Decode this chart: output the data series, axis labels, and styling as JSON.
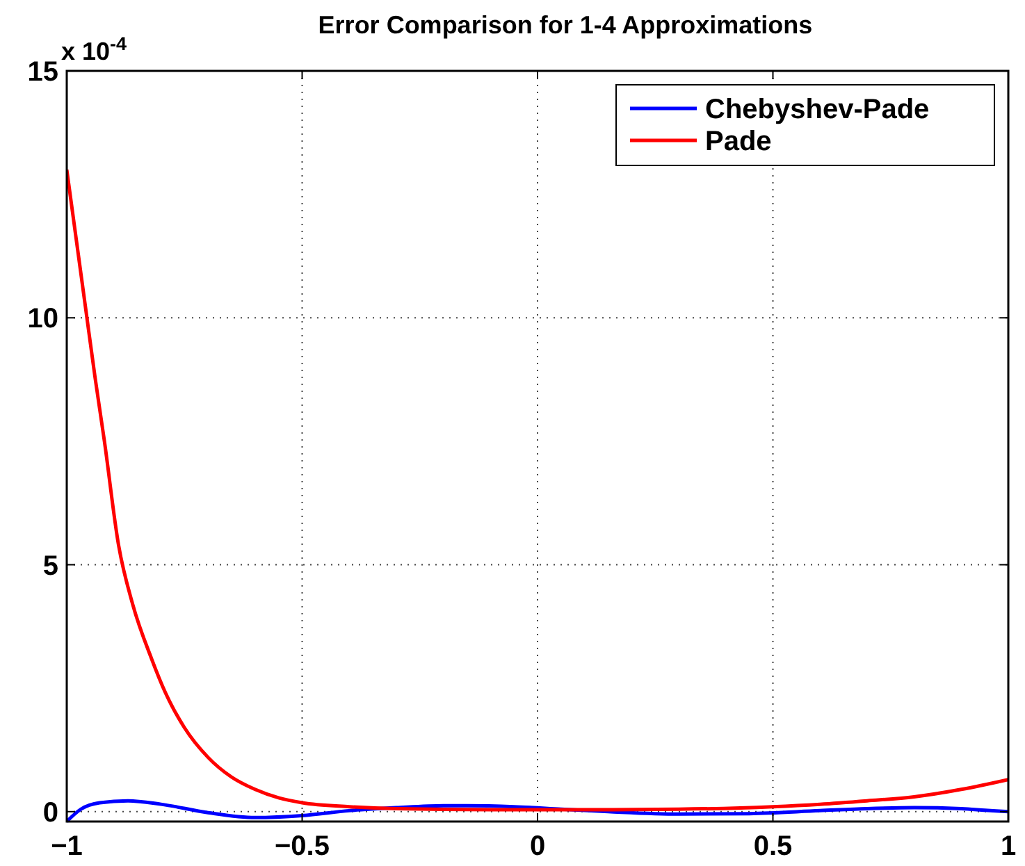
{
  "chart_data": {
    "type": "line",
    "title": "Error Comparison for 1-4 Approximations",
    "annotations": [
      "x 10$^{-4}$"
    ],
    "xlim": [
      -1,
      1
    ],
    "ylim": [
      -0.2,
      15
    ],
    "xticks": [
      -1,
      -0.5,
      0,
      0.5,
      1
    ],
    "yticks": [
      0,
      5,
      10,
      15
    ],
    "grid": true,
    "legend": "top right",
    "line_style": "solid",
    "marker": "none",
    "series": [
      {
        "name": "Chebyshev-Pade",
        "color": "#0000ff",
        "x": [
          -1,
          -0.97,
          -0.93,
          -0.87,
          -0.8,
          -0.7,
          -0.6,
          -0.5,
          -0.4,
          -0.3,
          -0.2,
          -0.15,
          -0.05,
          0.05,
          0.15,
          0.3,
          0.45,
          0.6,
          0.7,
          0.8,
          0.9,
          0.95,
          1
        ],
        "values": [
          -0.2,
          0.05,
          0.18,
          0.22,
          0.15,
          -0.02,
          -0.12,
          -0.08,
          0.02,
          0.08,
          0.12,
          0.12,
          0.1,
          0.05,
          0,
          -0.05,
          -0.04,
          0.02,
          0.06,
          0.08,
          0.06,
          0.03,
          0
        ]
      },
      {
        "name": "Pade",
        "color": "#ff0000",
        "x": [
          -1,
          -0.98,
          -0.96,
          -0.94,
          -0.92,
          -0.89,
          -0.86,
          -0.82,
          -0.79,
          -0.75,
          -0.7,
          -0.65,
          -0.6,
          -0.55,
          -0.5,
          -0.4,
          -0.3,
          -0.1,
          0.1,
          0.3,
          0.5,
          0.6,
          0.7,
          0.8,
          0.9,
          1
        ],
        "values": [
          13,
          11.6,
          10.2,
          8.8,
          7.5,
          5.4,
          4.2,
          3.1,
          2.4,
          1.7,
          1.1,
          0.7,
          0.45,
          0.28,
          0.18,
          0.1,
          0.06,
          0.04,
          0.04,
          0.05,
          0.1,
          0.15,
          0.22,
          0.3,
          0.45,
          0.65
        ]
      }
    ]
  }
}
